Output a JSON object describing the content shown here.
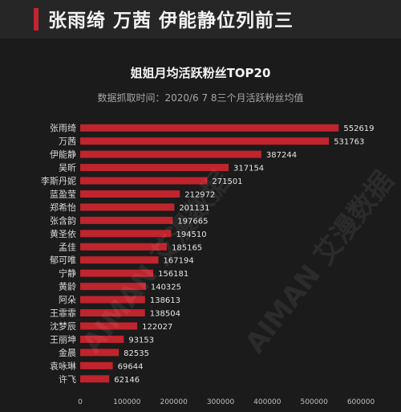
{
  "header": {
    "headline": "张雨绮 万茜 伊能静位列前三"
  },
  "chart_data": {
    "type": "bar",
    "orientation": "horizontal",
    "title": "姐姐月均活跃粉丝TOP20",
    "subtitle": "数据抓取时间：2020/6 7 8三个月活跃粉丝均值",
    "categories": [
      "张雨绮",
      "万茜",
      "伊能静",
      "吴昕",
      "李斯丹妮",
      "蓝盈莹",
      "郑希怡",
      "张含韵",
      "黄圣依",
      "孟佳",
      "郁可唯",
      "宁静",
      "黄龄",
      "阿朵",
      "王霏霏",
      "沈梦辰",
      "王丽坤",
      "金晨",
      "袁咏琳",
      "许飞"
    ],
    "values": [
      552619,
      531763,
      387244,
      317154,
      271501,
      212972,
      201131,
      197665,
      194510,
      185165,
      167194,
      156181,
      140325,
      138613,
      138504,
      122027,
      93153,
      82535,
      69644,
      62146
    ],
    "xlim": [
      0,
      600000
    ],
    "xticks": [
      "0",
      "100000",
      "200000",
      "300000",
      "400000",
      "500000",
      "600000"
    ],
    "bar_color": "#c0242d",
    "grid": false
  },
  "watermarks": [
    "AIMAN 艾漫数据",
    "AIMAN 艾漫数据"
  ]
}
